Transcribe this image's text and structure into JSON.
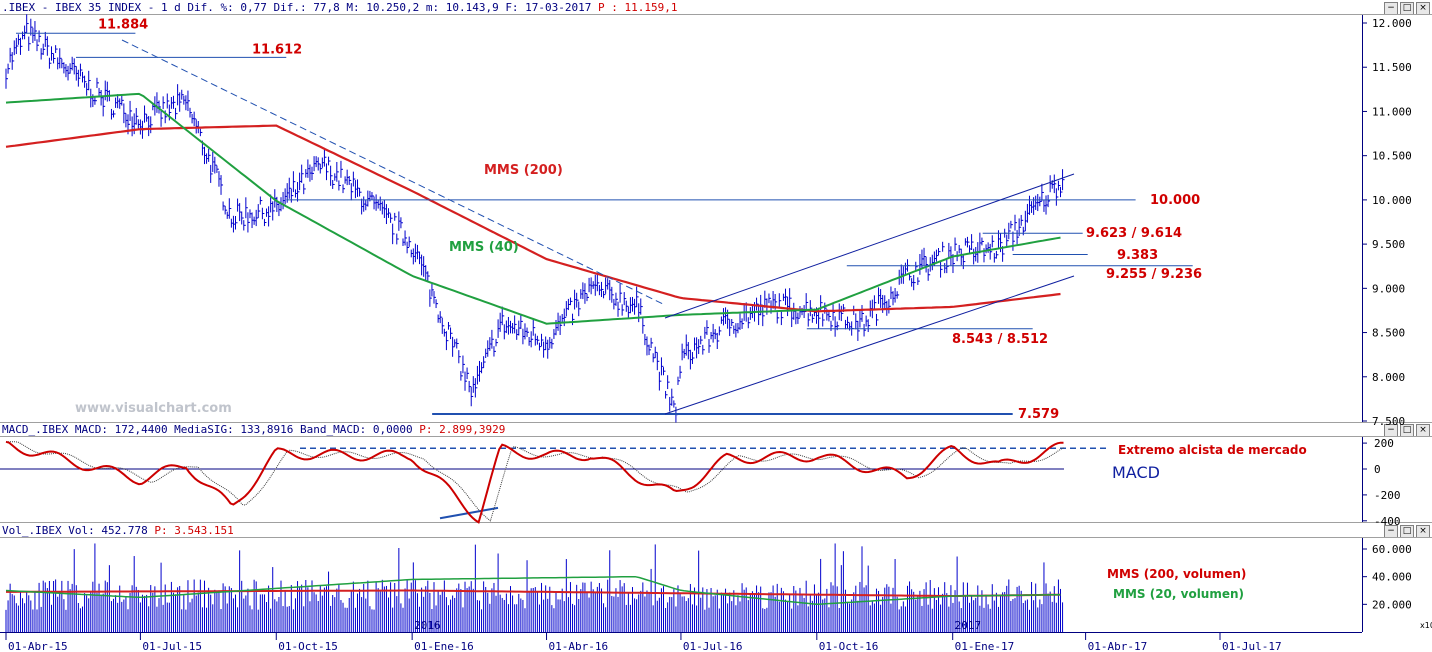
{
  "header_main": {
    "text": ".IBEX - IBEX 35 INDEX -  1 d Dif. %: 0,77 Dif.: 77,8 M: 10.250,2 m: 10.143,9 F: 17-03-2017",
    "last": "P : 11.159,1"
  },
  "header_macd": {
    "text": "MACD_.IBEX MACD: 172,4400 MediaSIG: 133,8916 Band_MACD: 0,0000",
    "last": "P: 2.899,3929"
  },
  "header_vol": {
    "text": "Vol_.IBEX Vol: 452.778",
    "last": "P: 3.543.151"
  },
  "watermark": "www.visualchart.com",
  "window_buttons": [
    "−",
    "□",
    "×"
  ],
  "colors": {
    "price_bars": "#0000cc",
    "mms200": "#d42020",
    "mms40": "#20a040",
    "levels": "#2050b0",
    "labels_red": "#d00000",
    "axis": "#000080",
    "macd": "#cc0000"
  },
  "chart_data": [
    {
      "type": "bar",
      "name": "price",
      "x_tick_labels": [
        "01-Abr-15",
        "01-Jul-15",
        "01-Oct-15",
        "01-Ene-16",
        "01-Abr-16",
        "01-Jul-16",
        "01-Oct-16",
        "01-Ene-17",
        "01-Abr-17",
        "01-Jul-17"
      ],
      "y_tick_labels": [
        "12.000",
        "11.500",
        "11.000",
        "10.500",
        "10.000",
        "9.500",
        "9.000",
        "8.500",
        "8.000",
        "7.500"
      ],
      "ylim": [
        7500,
        12000
      ],
      "series": [
        {
          "name": "MMS (200)",
          "x": [
            "01-Abr-15",
            "01-Jul-15",
            "01-Oct-15",
            "01-Ene-16",
            "01-Abr-16",
            "01-Jul-16",
            "01-Oct-16",
            "01-Ene-17",
            "17-03-2017"
          ],
          "values": [
            10600,
            10800,
            10840,
            10100,
            9330,
            8890,
            8740,
            8790,
            8940
          ]
        },
        {
          "name": "MMS (40)",
          "x": [
            "01-Abr-15",
            "01-Jul-15",
            "01-Oct-15",
            "01-Ene-16",
            "01-Abr-16",
            "01-Jul-16",
            "01-Oct-16",
            "01-Ene-17",
            "17-03-2017"
          ],
          "values": [
            11100,
            11200,
            9990,
            9140,
            8600,
            8700,
            8760,
            9360,
            9580
          ]
        },
        {
          "name": "price",
          "x": [
            "01-Abr-15",
            "15-Abr-15",
            "01-Jun-15",
            "01-Jul-15",
            "01-Ago-15",
            "01-Sep-15",
            "01-Oct-15",
            "01-Nov-15",
            "01-Dic-15",
            "01-Ene-16",
            "11-Feb-16",
            "01-Mar-16",
            "01-Abr-16",
            "01-May-16",
            "01-Jun-16",
            "27-Jun-16",
            "01-Jul-16",
            "01-Ago-16",
            "01-Sep-16",
            "01-Oct-16",
            "01-Nov-16",
            "01-Dic-16",
            "01-Ene-17",
            "01-Feb-17",
            "17-03-2017"
          ],
          "values": [
            11500,
            11884,
            11200,
            10900,
            11100,
            9800,
            9900,
            10400,
            10000,
            9500,
            7800,
            8600,
            8400,
            9000,
            8800,
            7579,
            8200,
            8600,
            8800,
            8750,
            8600,
            9150,
            9400,
            9450,
            10250
          ]
        }
      ],
      "annotations": [
        "11.884",
        "11.612",
        "MMS (200)",
        "MMS (40)",
        "10.000",
        "9.623 / 9.614",
        "9.383",
        "9.255 / 9.236",
        "8.543 / 8.512",
        "7.579"
      ],
      "horizontal_levels": [
        11884,
        11612,
        10000,
        9623,
        9383,
        9255,
        8543,
        7579
      ]
    },
    {
      "type": "line",
      "name": "MACD",
      "y_tick_labels": [
        "200",
        "0",
        "-200",
        "-400"
      ],
      "ylim": [
        -400,
        200
      ],
      "annotations": [
        "Extremo alcista de mercado",
        "MACD"
      ],
      "series": [
        {
          "name": "MACD",
          "x": [
            "01-Abr-15",
            "01-Jul-15",
            "01-Ago-15",
            "01-Sep-15",
            "01-Oct-15",
            "01-Nov-15",
            "01-Ene-16",
            "15-Feb-16",
            "01-Mar-16",
            "01-Abr-16",
            "01-May-16",
            "27-Jun-16",
            "01-Ago-16",
            "01-Oct-16",
            "01-Dic-16",
            "01-Ene-17",
            "01-Feb-17",
            "17-03-2017"
          ],
          "values": [
            190,
            -80,
            30,
            -300,
            120,
            110,
            100,
            -380,
            150,
            100,
            110,
            -200,
            80,
            100,
            -60,
            150,
            20,
            172
          ]
        }
      ]
    },
    {
      "type": "bar",
      "name": "volume",
      "y_tick_labels": [
        "60.000",
        "40.000",
        "20.000"
      ],
      "ylim": [
        0,
        60000
      ],
      "x_tick_labels": [
        "2016",
        "2017"
      ],
      "series": [
        {
          "name": "MMS (200, volumen)",
          "x": [
            "01-Abr-15",
            "01-Ene-16",
            "01-Jul-16",
            "01-Ene-17",
            "17-03-2017"
          ],
          "values": [
            29000,
            30000,
            28000,
            26000,
            27000
          ]
        },
        {
          "name": "MMS (20, volumen)",
          "x": [
            "01-Abr-15",
            "01-Jul-15",
            "01-Ene-16",
            "01-Jun-16",
            "01-Jul-16",
            "01-Oct-16",
            "01-Ene-17",
            "17-03-2017"
          ],
          "values": [
            30000,
            25000,
            38000,
            40000,
            30000,
            20000,
            26000,
            27000
          ]
        }
      ]
    }
  ],
  "scale_mult": "x10"
}
